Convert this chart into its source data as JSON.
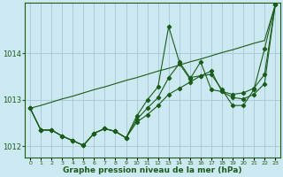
{
  "xlabel": "Graphe pression niveau de la mer (hPa)",
  "background_color": "#cce8f0",
  "grid_color": "#aaccd8",
  "line_color": "#1a5c1a",
  "x": [
    0,
    1,
    2,
    3,
    4,
    5,
    6,
    7,
    8,
    9,
    10,
    11,
    12,
    13,
    14,
    15,
    16,
    17,
    18,
    19,
    20,
    21,
    22,
    23
  ],
  "series1": [
    1012.82,
    1012.35,
    1012.35,
    1012.22,
    1012.12,
    1012.02,
    1012.28,
    1012.38,
    1012.32,
    1012.18,
    1012.65,
    1013.0,
    1013.28,
    1014.58,
    1013.82,
    1013.48,
    1013.52,
    1013.55,
    1013.22,
    1012.88,
    1012.88,
    1013.22,
    1014.1,
    1015.05
  ],
  "series2": [
    1012.82,
    1012.35,
    1012.35,
    1012.22,
    1012.12,
    1012.02,
    1012.28,
    1012.38,
    1012.32,
    1012.18,
    1012.58,
    1012.82,
    1013.05,
    1013.48,
    1013.78,
    1013.45,
    1013.82,
    1013.22,
    1013.18,
    1013.12,
    1013.15,
    1013.25,
    1013.55,
    1015.05
  ],
  "series3": [
    1012.82,
    1012.35,
    1012.35,
    1012.22,
    1012.12,
    1012.02,
    1012.28,
    1012.38,
    1012.32,
    1012.18,
    1012.52,
    1012.68,
    1012.88,
    1013.12,
    1013.25,
    1013.38,
    1013.52,
    1013.62,
    1013.18,
    1013.05,
    1013.02,
    1013.12,
    1013.35,
    1015.05
  ],
  "series_straight": [
    1012.82,
    1012.88,
    1012.95,
    1013.02,
    1013.08,
    1013.15,
    1013.22,
    1013.28,
    1013.35,
    1013.42,
    1013.48,
    1013.55,
    1013.62,
    1013.68,
    1013.75,
    1013.82,
    1013.88,
    1013.95,
    1014.02,
    1014.08,
    1014.15,
    1014.22,
    1014.28,
    1015.05
  ],
  "ylim": [
    1011.75,
    1015.1
  ],
  "yticks": [
    1012,
    1013,
    1014
  ],
  "xlim": [
    -0.5,
    23.5
  ],
  "xtick_labels": [
    "0",
    "1",
    "2",
    "3",
    "4",
    "5",
    "6",
    "7",
    "8",
    "9",
    "10",
    "11",
    "12",
    "13",
    "14",
    "15",
    "16",
    "17",
    "18",
    "19",
    "20",
    "21",
    "22",
    "23"
  ]
}
